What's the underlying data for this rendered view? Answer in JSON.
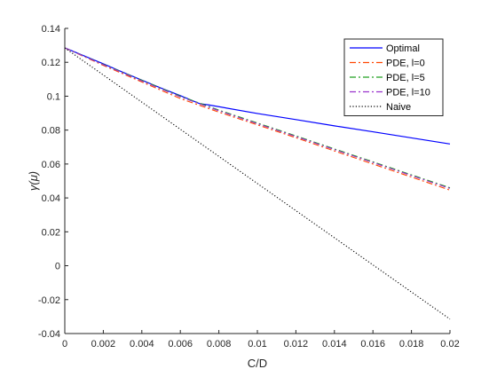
{
  "chart_data": {
    "type": "line",
    "title": "",
    "xlabel": "C/D",
    "ylabel": "γ(μ)",
    "xlim": [
      0,
      0.02
    ],
    "ylim": [
      -0.04,
      0.14
    ],
    "xticks": [
      0,
      0.002,
      0.004,
      0.006,
      0.008,
      0.01,
      0.012,
      0.014,
      0.016,
      0.018,
      0.02
    ],
    "xtick_labels": [
      "0",
      "0.002",
      "0.004",
      "0.006",
      "0.008",
      "0.01",
      "0.012",
      "0.014",
      "0.016",
      "0.018",
      "0.02"
    ],
    "yticks": [
      -0.04,
      -0.02,
      0,
      0.02,
      0.04,
      0.06,
      0.08,
      0.1,
      0.12,
      0.14
    ],
    "ytick_labels": [
      "-0.04",
      "-0.02",
      "0",
      "0.02",
      "0.04",
      "0.06",
      "0.08",
      "0.1",
      "0.12",
      "0.14"
    ],
    "grid": false,
    "legend_position": "top-right",
    "series": [
      {
        "name": "Optimal",
        "color": "#0000ff",
        "style": "solid",
        "x": [
          0,
          0.001,
          0.002,
          0.003,
          0.004,
          0.005,
          0.006,
          0.007,
          0.0075,
          0.01,
          0.012,
          0.014,
          0.016,
          0.018,
          0.02
        ],
        "y": [
          0.1285,
          0.1238,
          0.1191,
          0.1142,
          0.1095,
          0.1048,
          0.1003,
          0.0956,
          0.0948,
          0.0898,
          0.0862,
          0.0825,
          0.079,
          0.0754,
          0.0718
        ]
      },
      {
        "name": "PDE, l=0",
        "color": "#ff4500",
        "style": "dashdot",
        "x": [
          0,
          0.002,
          0.004,
          0.006,
          0.008,
          0.01,
          0.012,
          0.014,
          0.016,
          0.018,
          0.02
        ],
        "y": [
          0.1285,
          0.1182,
          0.1084,
          0.0986,
          0.0906,
          0.0831,
          0.0755,
          0.0677,
          0.06,
          0.0523,
          0.0446
        ]
      },
      {
        "name": "PDE, l=5",
        "color": "#22a022",
        "style": "dashdot",
        "x": [
          0,
          0.002,
          0.004,
          0.006,
          0.008,
          0.01,
          0.012,
          0.014,
          0.016,
          0.018,
          0.02
        ],
        "y": [
          0.1285,
          0.1188,
          0.1094,
          0.1,
          0.0918,
          0.0842,
          0.0766,
          0.0689,
          0.0613,
          0.0536,
          0.046
        ]
      },
      {
        "name": "PDE, l=10",
        "color": "#9932cc",
        "style": "dashdot",
        "x": [
          0,
          0.002,
          0.004,
          0.006,
          0.008,
          0.01,
          0.012,
          0.014,
          0.016,
          0.018,
          0.02
        ],
        "y": [
          0.1285,
          0.1186,
          0.109,
          0.0996,
          0.0914,
          0.0838,
          0.0762,
          0.0685,
          0.0609,
          0.0532,
          0.0456
        ]
      },
      {
        "name": "Naive",
        "color": "#000000",
        "style": "dotted",
        "x": [
          0,
          0.02
        ],
        "y": [
          0.1285,
          -0.0315
        ]
      }
    ]
  }
}
